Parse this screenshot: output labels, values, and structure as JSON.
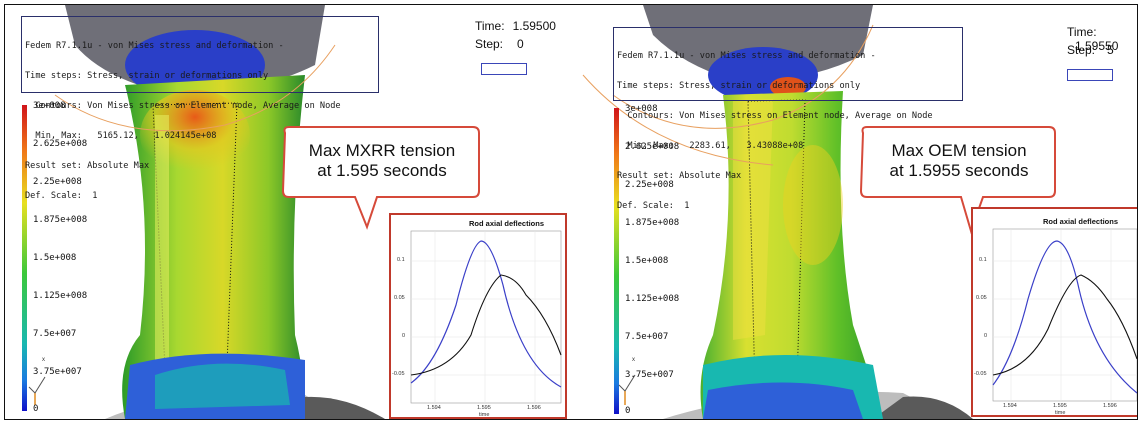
{
  "panels": [
    {
      "info_lines": [
        "Fedem R7.1.1u - von Mises stress and deformation -",
        "Time steps: Stress, strain or deformations only",
        "  Contours: Von Mises stress on Element node, Average on Node",
        "  Min, Max:   5165.12,   1.024145e+08",
        "Result set: Absolute Max",
        "Def. Scale:  1"
      ],
      "time_label": "Time:",
      "time_value": "1.59500",
      "step_label": "Step:",
      "step_value": "0",
      "legend": [
        "3e+008",
        "2.625e+008",
        "2.25e+008",
        "1.875e+008",
        "1.5e+008",
        "1.125e+008",
        "7.5e+007",
        "3.75e+007",
        "0"
      ],
      "callout": [
        "Max MXRR tension",
        "at 1.595 seconds"
      ],
      "inset": {
        "title": "Rod axial deflections",
        "y_ticks": [
          "0.1",
          "0.05",
          "0",
          "-0.05"
        ],
        "x_ticks": [
          "1.594",
          "1.595",
          "1.596"
        ],
        "x_label": "time"
      }
    },
    {
      "info_lines": [
        "Fedem R7.1.1u - von Mises stress and deformation -",
        "Time steps: Stress, strain or deformations only",
        "  Contours: Von Mises stress on Element node, Average on Node",
        "  Min, Max:   2283.61,   3.43088e+08",
        "Result set: Absolute Max",
        "Def. Scale:  1"
      ],
      "time_label": "Time:",
      "time_value": "1.59550",
      "step_label": "Step:",
      "step_value": "5",
      "legend": [
        "3e+008",
        "2.625e+008",
        "2.25e+008",
        "1.875e+008",
        "1.5e+008",
        "1.125e+008",
        "7.5e+007",
        "3.75e+007",
        "0"
      ],
      "callout": [
        "Max OEM tension",
        "at 1.5955 seconds"
      ],
      "inset": {
        "title": "Rod axial deflections",
        "y_ticks": [
          "0.1",
          "0.05",
          "0",
          "-0.05"
        ],
        "x_ticks": [
          "1.594",
          "1.595",
          "1.596"
        ],
        "x_label": "time"
      }
    }
  ],
  "colors": {
    "callout_border": "#d64a3a",
    "inset_border": "#c0392b",
    "curve_blue": "#3a3fc8",
    "curve_black": "#111111",
    "info_border": "#2a2f6a"
  },
  "icons": [
    "axis-triad-icon"
  ]
}
